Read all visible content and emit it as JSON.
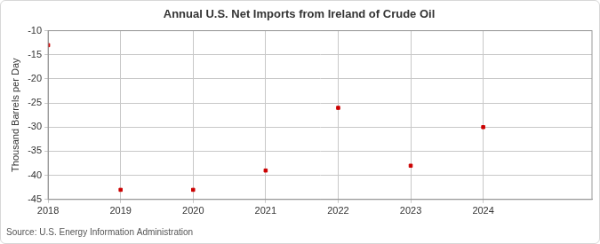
{
  "chart_data": {
    "type": "scatter",
    "title": "Annual U.S. Net Imports from Ireland of Crude Oil",
    "y_label": "Thousand Barrels per Day",
    "source": "Source: U.S. Energy Information Administration",
    "x": [
      2018,
      2019,
      2020,
      2021,
      2022,
      2023,
      2024
    ],
    "values": [
      -13,
      -43,
      -43,
      -39,
      -26,
      -38,
      -30
    ],
    "color": "#cc0000",
    "marker": "square",
    "xlim": [
      2018,
      2025.5
    ],
    "xticks": [
      2018,
      2019,
      2020,
      2021,
      2022,
      2023,
      2024
    ],
    "ylim": [
      -45,
      -10
    ],
    "yticks": [
      -45,
      -40,
      -35,
      -30,
      -25,
      -20,
      -15,
      -10
    ],
    "grid": true
  }
}
